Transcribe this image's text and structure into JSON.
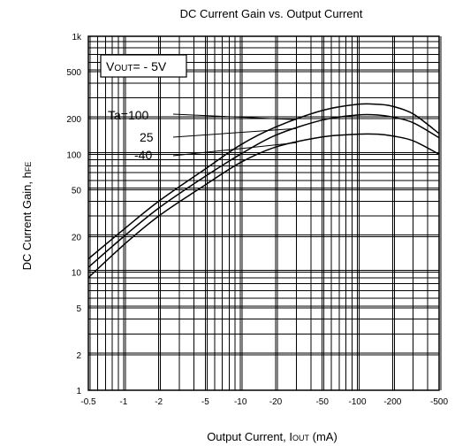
{
  "chart_data": {
    "type": "line",
    "title": "DC Current Gain vs. Output Current",
    "xlabel": "Output Current, I",
    "xlabel_sub": "OUT",
    "xlabel_unit": " (mA)",
    "ylabel": "DC Current Gain, h",
    "ylabel_sub": "FE",
    "x_scale": "log",
    "y_scale": "log",
    "x_direction": "increasing current magnitude (negative values)",
    "xlim": [
      -0.5,
      -500
    ],
    "ylim": [
      1,
      1000
    ],
    "grid": true,
    "x_ticks": [
      {
        "value": -0.5,
        "label": "-0.5"
      },
      {
        "value": -1,
        "label": "-1"
      },
      {
        "value": -2,
        "label": "-2"
      },
      {
        "value": -5,
        "label": "-5"
      },
      {
        "value": -10,
        "label": "-10"
      },
      {
        "value": -20,
        "label": "-20"
      },
      {
        "value": -50,
        "label": "-50"
      },
      {
        "value": -100,
        "label": "-100"
      },
      {
        "value": -200,
        "label": "-200"
      },
      {
        "value": -500,
        "label": "-500"
      }
    ],
    "y_ticks": [
      {
        "value": 1,
        "label": "1"
      },
      {
        "value": 2,
        "label": "2"
      },
      {
        "value": 5,
        "label": "5"
      },
      {
        "value": 10,
        "label": "10"
      },
      {
        "value": 20,
        "label": "20"
      },
      {
        "value": 50,
        "label": "50"
      },
      {
        "value": 100,
        "label": "100"
      },
      {
        "value": 200,
        "label": "200"
      },
      {
        "value": 500,
        "label": "500"
      },
      {
        "value": 1000,
        "label": "1k"
      }
    ],
    "condition_box": {
      "prefix": "V",
      "sub": "OUT",
      "rest": "= - 5V"
    },
    "series": [
      {
        "name": "Ta=100",
        "x": [
          -0.5,
          -1,
          -2,
          -5,
          -10,
          -20,
          -50,
          -100,
          -150,
          -200,
          -300,
          -500
        ],
        "y": [
          13,
          23,
          40,
          75,
          120,
          170,
          235,
          265,
          265,
          255,
          220,
          150
        ]
      },
      {
        "name": "25",
        "x": [
          -0.5,
          -1,
          -2,
          -5,
          -10,
          -20,
          -50,
          -100,
          -150,
          -200,
          -300,
          -500
        ],
        "y": [
          11,
          20,
          35,
          65,
          100,
          145,
          195,
          215,
          215,
          207,
          185,
          138
        ]
      },
      {
        "name": "-40",
        "x": [
          -0.5,
          -1,
          -2,
          -5,
          -10,
          -20,
          -50,
          -100,
          -150,
          -200,
          -300,
          -500
        ],
        "y": [
          9,
          17,
          30,
          55,
          85,
          115,
          140,
          148,
          148,
          143,
          130,
          100
        ]
      }
    ]
  }
}
